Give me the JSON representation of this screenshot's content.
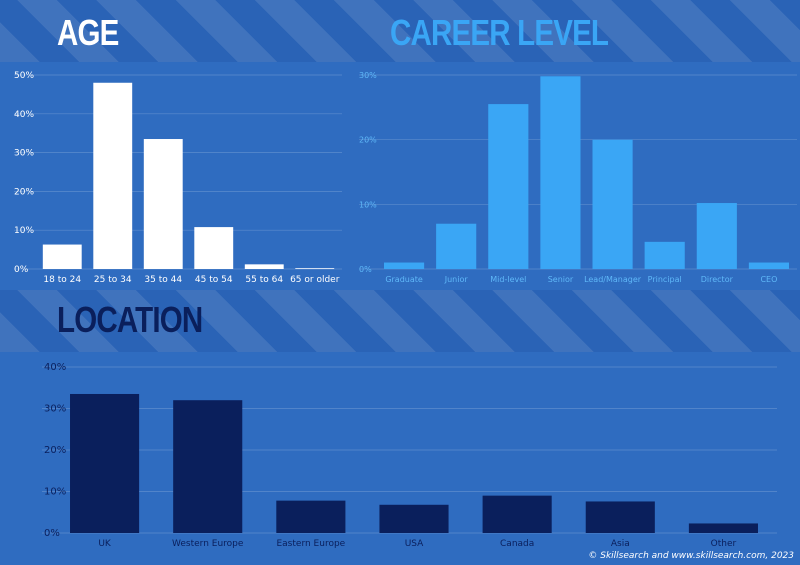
{
  "colors": {
    "age": "#ffffff",
    "career": "#3aa6f5",
    "location": "#0a1f5c",
    "age_axis_text": "#ffffff",
    "career_axis_text": "#5fb8f8",
    "location_axis_text": "#0a1f5c"
  },
  "footer": "© Skillsearch and www.skillsearch.com, 2023",
  "chart_data": [
    {
      "id": "age",
      "type": "bar",
      "title": "AGE",
      "categories": [
        "18 to 24",
        "25 to 34",
        "35 to 44",
        "45 to 54",
        "55 to 64",
        "65 or older"
      ],
      "values": [
        6.3,
        48,
        33.5,
        10.8,
        1.2,
        0.2
      ],
      "ylim": [
        0,
        50
      ],
      "yticks": [
        0,
        10,
        20,
        30,
        40,
        50
      ],
      "ytick_labels": [
        "0%",
        "10%",
        "20%",
        "30%",
        "40%",
        "50%"
      ],
      "grid": true
    },
    {
      "id": "career",
      "type": "bar",
      "title": "CAREER LEVEL",
      "categories": [
        "Graduate",
        "Junior",
        "Mid-level",
        "Senior",
        "Lead/Manager",
        "Principal",
        "Director",
        "CEO"
      ],
      "values": [
        1,
        7,
        25.5,
        29.8,
        20,
        4.2,
        10.2,
        1
      ],
      "ylim": [
        0,
        30
      ],
      "yticks": [
        0,
        10,
        20,
        30
      ],
      "ytick_labels": [
        "0%",
        "10%",
        "20%",
        "30%"
      ],
      "grid": true
    },
    {
      "id": "location",
      "type": "bar",
      "title": "LOCATION",
      "categories": [
        "UK",
        "Western Europe",
        "Eastern Europe",
        "USA",
        "Canada",
        "Asia",
        "Other"
      ],
      "values": [
        33.5,
        32,
        7.8,
        6.8,
        9,
        7.6,
        2.3
      ],
      "ylim": [
        0,
        40
      ],
      "yticks": [
        0,
        10,
        20,
        30,
        40
      ],
      "ytick_labels": [
        "0%",
        "10%",
        "20%",
        "30%",
        "40%"
      ],
      "grid": true
    }
  ]
}
